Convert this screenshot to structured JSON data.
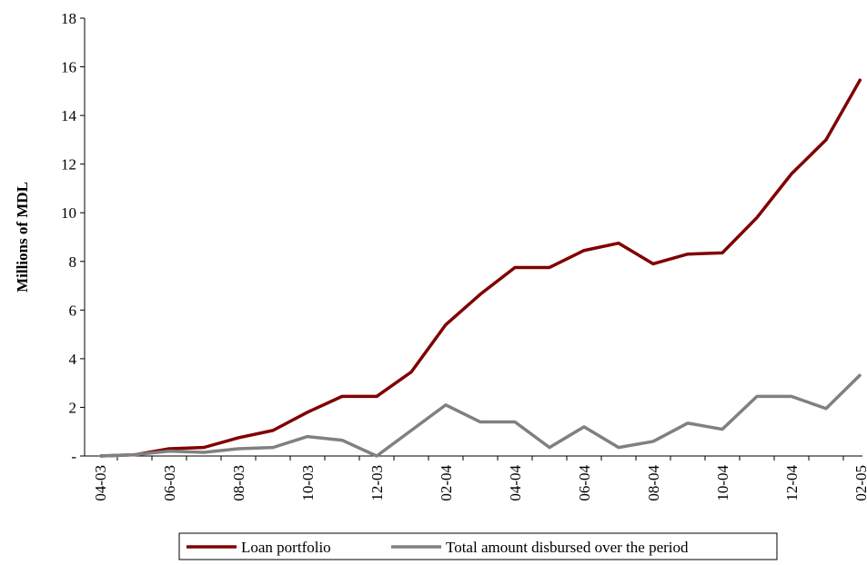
{
  "chart_data": {
    "type": "line",
    "y_label": "Millions of MDL",
    "categories": [
      "04-03",
      null,
      "06-03",
      null,
      "08-03",
      null,
      "10-03",
      null,
      "12-03",
      null,
      "02-04",
      null,
      "04-04",
      null,
      "06-04",
      null,
      "08-04",
      null,
      "10-04",
      null,
      "12-04",
      null,
      "02-05"
    ],
    "series": [
      {
        "name": "Loan portfolio",
        "color": "#800000",
        "values": [
          0,
          0.05,
          0.3,
          0.35,
          0.75,
          1.05,
          1.8,
          2.45,
          2.45,
          3.45,
          5.4,
          6.65,
          7.75,
          7.75,
          8.45,
          8.75,
          7.9,
          8.3,
          8.35,
          9.8,
          11.6,
          13.0,
          15.5
        ]
      },
      {
        "name": "Total amount disbursed over the period",
        "color": "#808080",
        "values": [
          0,
          0.05,
          0.2,
          0.15,
          0.3,
          0.35,
          0.8,
          0.65,
          0,
          1.05,
          2.1,
          1.4,
          1.4,
          0.35,
          1.2,
          0.35,
          0.6,
          1.35,
          1.1,
          2.45,
          2.45,
          1.95,
          3.35
        ]
      }
    ],
    "ylim": [
      0,
      18
    ],
    "yticks": [
      {
        "value": 0,
        "label": "-"
      },
      2,
      4,
      6,
      8,
      10,
      12,
      14,
      16,
      18
    ],
    "legend": "bottom"
  }
}
